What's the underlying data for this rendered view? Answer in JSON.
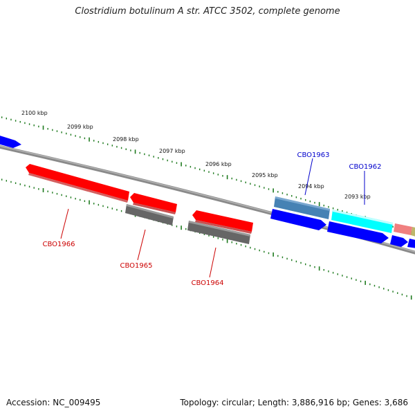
{
  "title": "Clostridium botulinum A str. ATCC 3502, complete genome",
  "footer": {
    "accession": "Accession: NC_009495",
    "topology": "Topology: circular; Length: 3,886,916 bp; Genes: 3,686"
  },
  "colors": {
    "backbone": "#8a8a8a",
    "tick": "#1e7a1e",
    "label_red": "#cc0000",
    "label_blue": "#0000cc",
    "red": "#ff0000",
    "gray": "#666666",
    "blue": "#0000ff",
    "steelblue": "#4682b4",
    "cyan": "#00ffff",
    "salmon": "#f08080",
    "khaki": "#bdb76b"
  },
  "scale_labels": [
    "2100 kbp",
    "2099 kbp",
    "2098 kbp",
    "2097 kbp",
    "2096 kbp",
    "2095 kbp",
    "2094 kbp",
    "2093 kbp"
  ],
  "genes": [
    {
      "label": "CBO1966",
      "label_color": "red"
    },
    {
      "label": "CBO1965",
      "label_color": "red"
    },
    {
      "label": "CBO1964",
      "label_color": "red"
    },
    {
      "label": "CBO1963",
      "label_color": "blue"
    },
    {
      "label": "CBO1962",
      "label_color": "blue"
    }
  ]
}
